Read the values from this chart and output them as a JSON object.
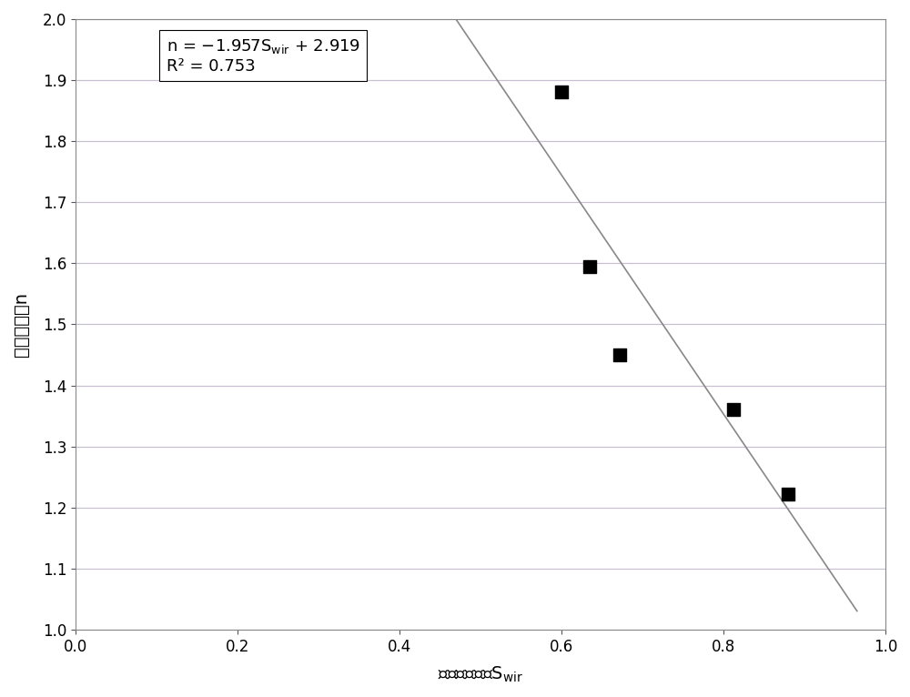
{
  "x_data": [
    0.6,
    0.635,
    0.672,
    0.812,
    0.88
  ],
  "y_data": [
    1.88,
    1.595,
    1.45,
    1.36,
    1.222
  ],
  "slope": -1.957,
  "intercept": 2.919,
  "x_line_start": 0.355,
  "x_line_end": 0.965,
  "xlim": [
    0.0,
    1.0
  ],
  "ylim": [
    1.0,
    2.0
  ],
  "xticks": [
    0.0,
    0.2,
    0.4,
    0.6,
    0.8,
    1.0
  ],
  "yticks": [
    1.0,
    1.1,
    1.2,
    1.3,
    1.4,
    1.5,
    1.6,
    1.7,
    1.8,
    1.9,
    2.0
  ],
  "line_color": "#888888",
  "marker_color": "#000000",
  "grid_color": "#c8c0d0",
  "background_color": "#ffffff",
  "fig_width": 10.0,
  "fig_height": 7.66,
  "spine_color": "#888888",
  "tick_color": "#555555",
  "label_fontsize": 14,
  "tick_fontsize": 12,
  "annotation_fontsize": 13
}
